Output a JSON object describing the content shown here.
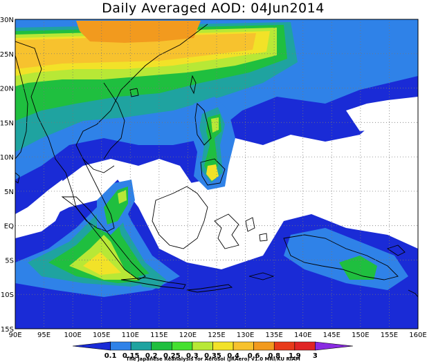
{
  "title": "Daily Averaged AOD: 04Jun2014",
  "credit": "The Japanese Reanalysis for Aerosol (JRAero) v1.0 MRI/KU RIAM",
  "map": {
    "lon_labels": [
      "90E",
      "95E",
      "100E",
      "105E",
      "110E",
      "115E",
      "120E",
      "125E",
      "130E",
      "135E",
      "140E",
      "145E",
      "150E",
      "155E",
      "160E"
    ],
    "lat_labels": [
      "30N",
      "25N",
      "20N",
      "15N",
      "10N",
      "5N",
      "EQ",
      "5S",
      "10S",
      "15S"
    ],
    "grid": "dotted"
  },
  "colorbar": {
    "levels": [
      "0.1",
      "0.15",
      "0.2",
      "0.25",
      "0.3",
      "0.35",
      "0.4",
      "0.6",
      "0.8",
      "1.9",
      "3"
    ],
    "colors": [
      "#1a2bd6",
      "#2f82e8",
      "#1fa3a0",
      "#1fbf3f",
      "#45e030",
      "#b8e836",
      "#f2e228",
      "#f7c22e",
      "#f29a1e",
      "#e83a1a",
      "#e02424",
      "#8a2be2"
    ]
  }
}
